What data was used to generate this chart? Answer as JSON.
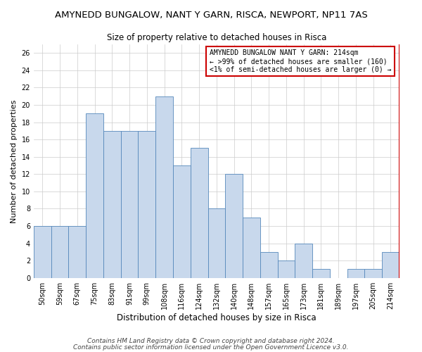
{
  "title": "AMYNEDD BUNGALOW, NANT Y GARN, RISCA, NEWPORT, NP11 7AS",
  "subtitle": "Size of property relative to detached houses in Risca",
  "xlabel": "Distribution of detached houses by size in Risca",
  "ylabel": "Number of detached properties",
  "categories": [
    "50sqm",
    "59sqm",
    "67sqm",
    "75sqm",
    "83sqm",
    "91sqm",
    "99sqm",
    "108sqm",
    "116sqm",
    "124sqm",
    "132sqm",
    "140sqm",
    "148sqm",
    "157sqm",
    "165sqm",
    "173sqm",
    "181sqm",
    "189sqm",
    "197sqm",
    "205sqm",
    "214sqm"
  ],
  "values": [
    6,
    6,
    6,
    19,
    17,
    17,
    17,
    21,
    13,
    15,
    8,
    12,
    7,
    3,
    2,
    4,
    1,
    0,
    1,
    1,
    3
  ],
  "bar_color": "#c8d8ec",
  "bar_edge_color": "#5588bb",
  "annotation_box_color": "#ffffff",
  "annotation_border_color": "#cc0000",
  "annotation_line1": "AMYNEDD BUNGALOW NANT Y GARN: 214sqm",
  "annotation_line2": "← >99% of detached houses are smaller (160)",
  "annotation_line3": "<1% of semi-detached houses are larger (0) →",
  "ylim": [
    0,
    27
  ],
  "yticks": [
    0,
    2,
    4,
    6,
    8,
    10,
    12,
    14,
    16,
    18,
    20,
    22,
    24,
    26
  ],
  "footer_line1": "Contains HM Land Registry data © Crown copyright and database right 2024.",
  "footer_line2": "Contains public sector information licensed under the Open Government Licence v3.0.",
  "title_fontsize": 9.5,
  "subtitle_fontsize": 8.5,
  "xlabel_fontsize": 8.5,
  "ylabel_fontsize": 8,
  "tick_fontsize": 7,
  "annotation_fontsize": 7,
  "footer_fontsize": 6.5,
  "background_color": "#ffffff",
  "plot_background_color": "#ffffff",
  "red_line_color": "#cc0000",
  "grid_color": "#cccccc"
}
